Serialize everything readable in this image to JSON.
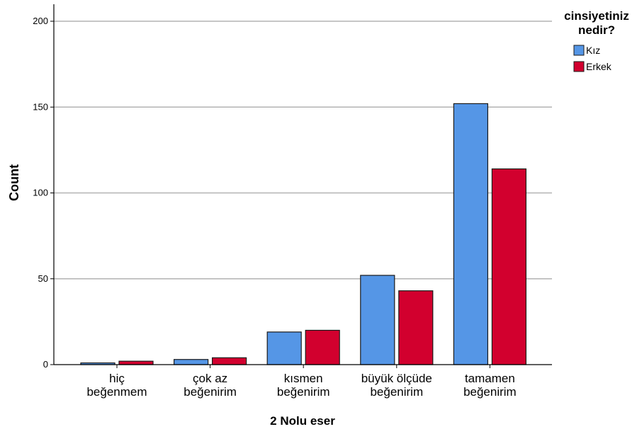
{
  "chart_data": {
    "type": "bar",
    "title": "",
    "xlabel": "2 Nolu eser",
    "ylabel": "Count",
    "ylim": [
      0,
      210
    ],
    "yticks": [
      0,
      50,
      100,
      150,
      200
    ],
    "grid": true,
    "legend_position": "top-right",
    "legend_title": [
      "cinsiyetiniz",
      "nedir?"
    ],
    "categories": [
      [
        "hiç",
        "beğenmem"
      ],
      [
        "çok az",
        "beğenirim"
      ],
      [
        "kısmen",
        "beğenirim"
      ],
      [
        "büyük ölçüde",
        "beğenirim"
      ],
      [
        "tamamen",
        "beğenirim"
      ]
    ],
    "series": [
      {
        "name": "Kız",
        "color": "#5596e6",
        "values": [
          1,
          3,
          19,
          52,
          152
        ]
      },
      {
        "name": "Erkek",
        "color": "#d2002e",
        "values": [
          2,
          4,
          20,
          43,
          114
        ]
      }
    ],
    "colors": {
      "grid": "#b3b3b3",
      "axis": "#000000",
      "bar_stroke": "#1a1a1a"
    }
  }
}
